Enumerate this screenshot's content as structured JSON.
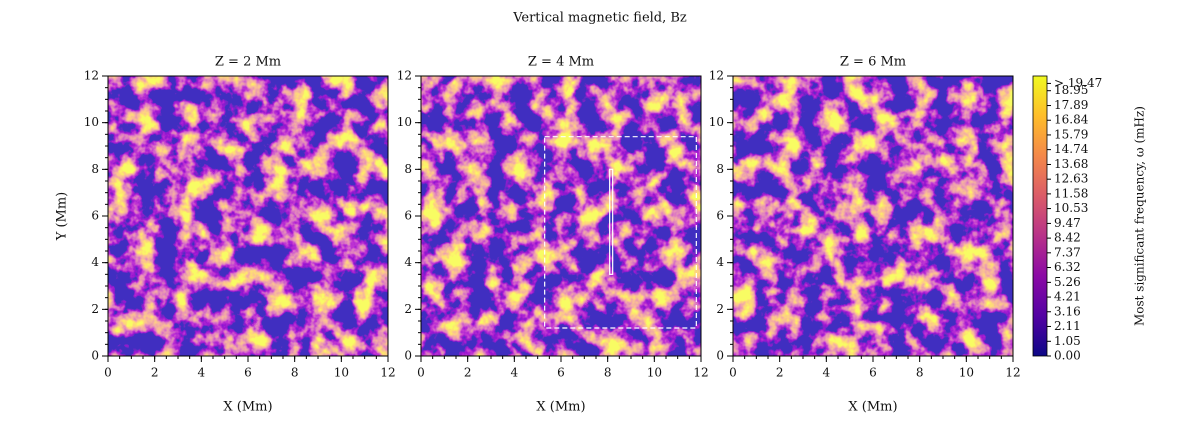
{
  "title": "Vertical magnetic field, Bz",
  "chart_data": [
    {
      "type": "heatmap",
      "title": "Z = 2 Mm",
      "xlabel": "X (Mm)",
      "ylabel": "Y (Mm)",
      "xlim": [
        0,
        12
      ],
      "ylim": [
        0,
        12
      ],
      "xticks": [
        0,
        2,
        4,
        6,
        8,
        10,
        12
      ],
      "yticks": [
        0,
        2,
        4,
        6,
        8,
        10,
        12
      ],
      "minor_step": 0.5
    },
    {
      "type": "heatmap",
      "title": "Z = 4 Mm",
      "xlabel": "X (Mm)",
      "xlim": [
        0,
        12
      ],
      "ylim": [
        0,
        12
      ],
      "xticks": [
        0,
        2,
        4,
        6,
        8,
        10,
        12
      ],
      "yticks": [
        0,
        2,
        4,
        6,
        8,
        10,
        12
      ],
      "minor_step": 0.5,
      "box": {
        "x": [
          5.3,
          11.8
        ],
        "y": [
          1.2,
          9.4
        ]
      },
      "slit": {
        "x": 8.15,
        "y": [
          3.5,
          8.0
        ]
      }
    },
    {
      "type": "heatmap",
      "title": "Z = 6 Mm",
      "xlabel": "X (Mm)",
      "xlim": [
        0,
        12
      ],
      "ylim": [
        0,
        12
      ],
      "xticks": [
        0,
        2,
        4,
        6,
        8,
        10,
        12
      ],
      "yticks": [
        0,
        2,
        4,
        6,
        8,
        10,
        12
      ],
      "minor_step": 0.5
    }
  ],
  "colorbar": {
    "label": "Most significant frequency, ω (mHz)",
    "clim": [
      0,
      20
    ],
    "colors": [
      "#0d0887",
      "#5302a3",
      "#8b0aa5",
      "#b83289",
      "#db5c68",
      "#f48849",
      "#febd2a",
      "#f0f921"
    ],
    "ticks": [
      {
        "value": 0,
        "label": "0.00"
      },
      1.05,
      2.11,
      3.16,
      4.21,
      5.26,
      6.32,
      7.37,
      8.42,
      9.47,
      10.53,
      11.58,
      12.63,
      13.68,
      14.74,
      15.79,
      16.84,
      17.89,
      18.95,
      {
        "value": 19.47,
        "label": "> 19.47"
      }
    ]
  }
}
